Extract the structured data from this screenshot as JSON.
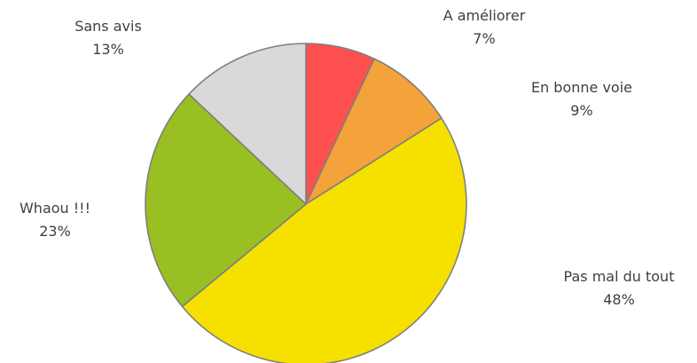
{
  "chart_data": {
    "type": "pie",
    "categories": [
      "A améliorer",
      "En bonne voie",
      "Pas mal du tout",
      "Whaou !!!",
      "Sans avis"
    ],
    "values": [
      7,
      9,
      48,
      23,
      13
    ],
    "labels": [
      "7%",
      "9%",
      "48%",
      "23%",
      "13%"
    ],
    "colors": [
      "#ff5050",
      "#f4a23a",
      "#f5e000",
      "#99bf22",
      "#d9d9d9"
    ],
    "slice_border_color": "#7f7f7f",
    "label_color": "#404040",
    "start": "12 o'clock",
    "direction": "clockwise",
    "title": "",
    "legend": "none"
  }
}
